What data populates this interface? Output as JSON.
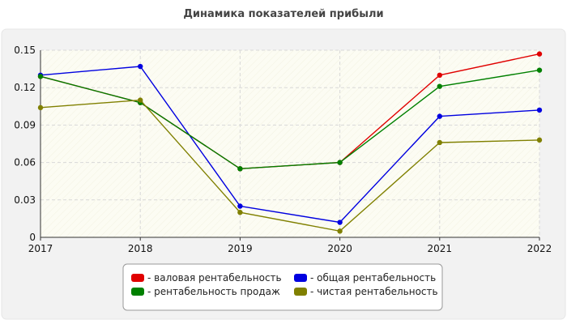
{
  "chart_data": {
    "type": "line",
    "title": "Динамика показателей прибыли",
    "xlabel": "",
    "ylabel": "",
    "categories": [
      "2017",
      "2018",
      "2019",
      "2020",
      "2021",
      "2022"
    ],
    "ylim": [
      0,
      0.15
    ],
    "yticks": [
      "0",
      "0.03",
      "0.06",
      "0.09",
      "0.12",
      "0.15"
    ],
    "grid": true,
    "legend_position": "bottom",
    "series": [
      {
        "name": "- валовая рентабельность",
        "color": "#e00000",
        "values": [
          0.129,
          0.108,
          0.055,
          0.06,
          0.13,
          0.147
        ]
      },
      {
        "name": "- общая рентабельность",
        "color": "#0000e0",
        "values": [
          0.13,
          0.137,
          0.025,
          0.012,
          0.097,
          0.102
        ]
      },
      {
        "name": "- рентабельность продаж",
        "color": "#008000",
        "values": [
          0.129,
          0.108,
          0.055,
          0.06,
          0.121,
          0.134
        ]
      },
      {
        "name": "- чистая рентабельность",
        "color": "#808000",
        "values": [
          0.104,
          0.11,
          0.02,
          0.005,
          0.076,
          0.078
        ]
      }
    ]
  }
}
